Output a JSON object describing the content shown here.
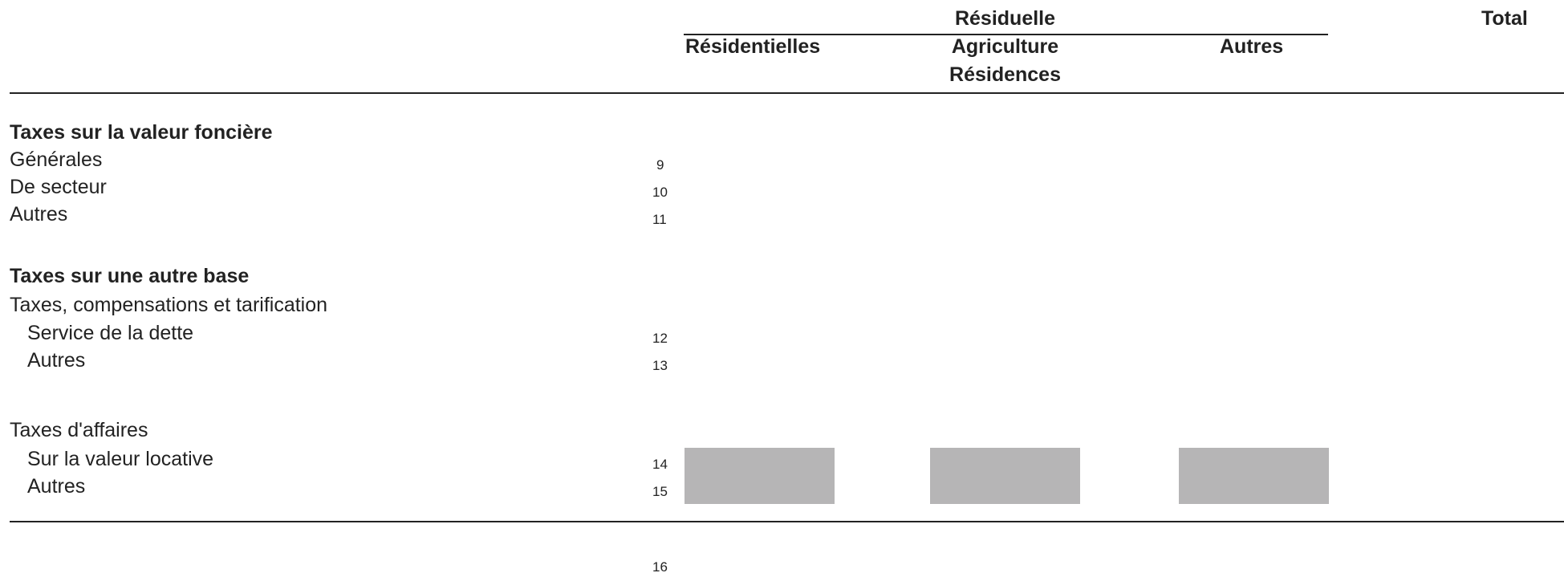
{
  "header": {
    "group_title": "Résiduelle",
    "total": "Total",
    "columns": {
      "residentielles": "Résidentielles",
      "agriculture": "Agriculture",
      "residences": "Résidences",
      "autres": "Autres"
    }
  },
  "sections": {
    "valeur_fonciere": {
      "title": "Taxes sur la valeur foncière",
      "rows": [
        {
          "label": "Générales",
          "line": "9"
        },
        {
          "label": "De secteur",
          "line": "10"
        },
        {
          "label": "Autres",
          "line": "11"
        }
      ]
    },
    "autre_base": {
      "title": "Taxes sur une autre base",
      "subtitle": "Taxes, compensations et tarification",
      "rows": [
        {
          "label": "Service de la dette",
          "line": "12"
        },
        {
          "label": "Autres",
          "line": "13"
        }
      ]
    },
    "affaires": {
      "title": "Taxes d'affaires",
      "rows": [
        {
          "label": "Sur la valeur locative",
          "line": "14"
        },
        {
          "label": "Autres",
          "line": "15"
        }
      ]
    }
  },
  "footer": {
    "line": "16"
  },
  "colors": {
    "text": "#222222",
    "shaded_cell": "#b6b5b6"
  }
}
